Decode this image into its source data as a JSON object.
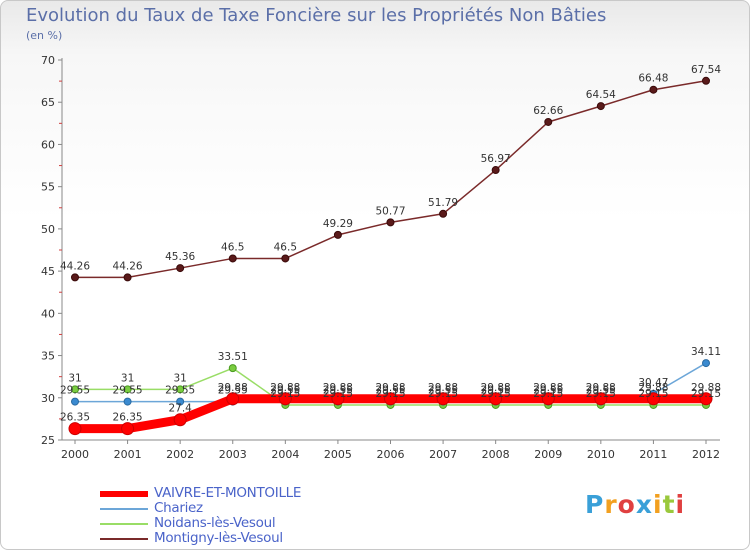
{
  "header": {
    "title": "Evolution du Taux de Taxe Foncière sur les Propriétés Non Bâties",
    "unit": "(en %)"
  },
  "chart_data": {
    "type": "line",
    "title": "Evolution du Taux de Taxe Foncière sur les Propriétés Non Bâties",
    "ylabel": "(en %)",
    "xlabel": "",
    "ylim": [
      25,
      70
    ],
    "yticks": [
      25,
      30,
      35,
      40,
      45,
      50,
      55,
      60,
      65,
      70
    ],
    "grid": false,
    "categories": [
      "2000",
      "2001",
      "2002",
      "2003",
      "2004",
      "2005",
      "2006",
      "2007",
      "2008",
      "2009",
      "2010",
      "2011",
      "2012"
    ],
    "series": [
      {
        "name": "VAIVRE-ET-MONTOILLE",
        "color": "#ff0000",
        "values": [
          26.35,
          26.35,
          27.4,
          29.88,
          29.88,
          29.88,
          29.88,
          29.88,
          29.88,
          29.88,
          29.88,
          29.88,
          29.88
        ],
        "labels": [
          "26.35",
          "26.35",
          "27.4",
          "29.88",
          "29.88",
          "29.88",
          "29.88",
          "29.88",
          "29.88",
          "29.88",
          "29.88",
          "29.88",
          "29.88"
        ]
      },
      {
        "name": "Chariez",
        "color": "#6ca6d8",
        "values": [
          29.55,
          29.55,
          29.55,
          29.55,
          29.55,
          29.55,
          29.55,
          29.55,
          29.55,
          29.55,
          29.55,
          30.47,
          34.11
        ],
        "labels": [
          "29.55",
          "29.55",
          "29.55",
          "29.55",
          "29.55",
          "29.55",
          "29.55",
          "29.55",
          "29.55",
          "29.55",
          "29.55",
          "30.47",
          "34.11"
        ]
      },
      {
        "name": "Noidans-lès-Vesoul",
        "color": "#99dd66",
        "values": [
          31,
          31,
          31,
          33.51,
          29.15,
          29.15,
          29.15,
          29.15,
          29.15,
          29.15,
          29.15,
          29.15,
          29.15
        ],
        "labels": [
          "31",
          "31",
          "31",
          "33.51",
          "29.15",
          "29.15",
          "29.15",
          "29.15",
          "29.15",
          "29.15",
          "29.15",
          "29.15",
          "29.15"
        ]
      },
      {
        "name": "Montigny-lès-Vesoul",
        "color": "#7a2a2a",
        "values": [
          44.26,
          44.26,
          45.36,
          46.5,
          46.5,
          49.29,
          50.77,
          51.79,
          56.97,
          62.66,
          64.54,
          66.48,
          67.54
        ],
        "labels": [
          "44.26",
          "44.26",
          "45.36",
          "46.5",
          "46.5",
          "49.29",
          "50.77",
          "51.79",
          "56.97",
          "62.66",
          "64.54",
          "66.48",
          "67.54"
        ]
      }
    ],
    "legend": [
      {
        "name": "VAIVRE-ET-MONTOILLE",
        "color": "#ff0000"
      },
      {
        "name": "Chariez",
        "color": "#6ca6d8"
      },
      {
        "name": "Noidans-lès-Vesoul",
        "color": "#99dd66"
      },
      {
        "name": "Montigny-lès-Vesoul",
        "color": "#7a2a2a"
      }
    ]
  },
  "branding": {
    "logo_letters": [
      "P",
      "r",
      "o",
      "x",
      "i",
      "t",
      "i"
    ],
    "logo_colors": [
      "#3aa0d8",
      "#f2a020",
      "#e04040",
      "#3aa0d8",
      "#f2a020",
      "#9ac83c",
      "#e04040"
    ]
  }
}
